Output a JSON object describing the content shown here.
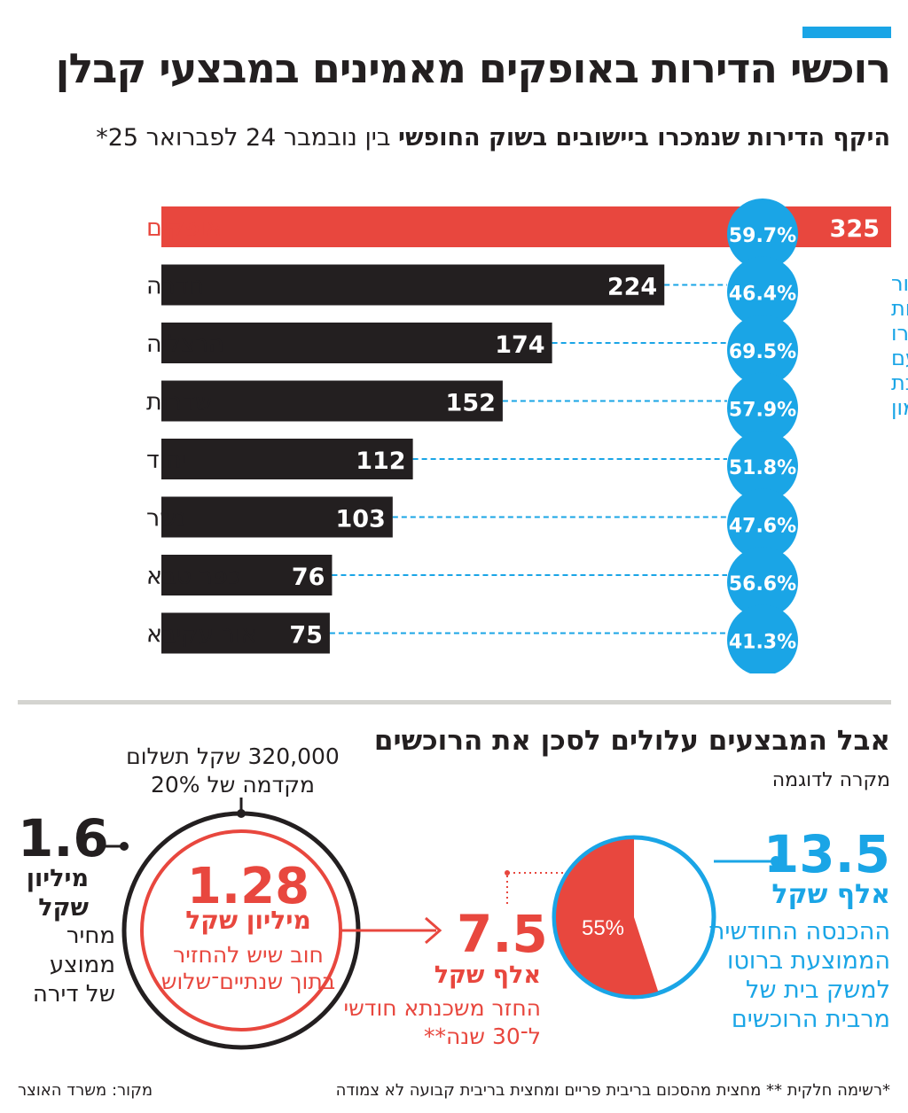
{
  "title": "רוכשי הדירות באופקים מאמינים במבצעי קבלן",
  "subtitle_bold": "היקף הדירות שנמכרו ביישובים בשוק החופשי",
  "subtitle_rest": " בין נובמבר 24 לפברואר 25*",
  "side_label": [
    "שיעור",
    "הדירות",
    "שנמכרו",
    "עם",
    "הטבת",
    "מימון"
  ],
  "chart_data": {
    "type": "bar",
    "orientation": "horizontal",
    "categories": [
      "אופקים",
      "חדרה",
      "הרצליה",
      "שדרות",
      "יהוד",
      "נשר",
      "כפר סבא",
      "אור עקיבא"
    ],
    "values": [
      325,
      224,
      174,
      152,
      112,
      103,
      76,
      75
    ],
    "financing_rate_labels": [
      "59.7%",
      "46.4%",
      "69.5%",
      "57.9%",
      "51.8%",
      "47.6%",
      "56.6%",
      "41.3%"
    ],
    "highlight_index": 0,
    "xlim": [
      0,
      325
    ]
  },
  "colors": {
    "blue": "#1aa5e6",
    "red": "#e8473e",
    "dark": "#231f20"
  },
  "section2": {
    "title": "אבל המבצעים עלולים לסכן את הרוכשים",
    "subtitle": "מקרה לדוגמה",
    "income_value": "13.5",
    "income_unit": "אלף שקל",
    "income_desc": "ההכנסה החודשית הממוצעת ברוטו למשק בית של מרבית הרוכשים",
    "pie_pct_label": "55%",
    "pie_fraction": 0.55,
    "mortgage_value": "7.5",
    "mortgage_unit": "אלף שקל",
    "mortgage_desc": "החזר משכנתא חודשי ל־30 שנה**",
    "debt_value": "1.28",
    "debt_unit": "מיליון שקל",
    "debt_desc": "חוב שיש להחזיר בתוך שנתיים־שלוש",
    "down_payment": "320,000 שקל תשלום מקדמה של 20%",
    "price_value": "1.6",
    "price_unit": "מיליון שקל",
    "price_desc": "מחיר ממוצע של דירה"
  },
  "footnote": "*רשימה חלקית ** מחצית מהסכום בריבית פריים ומחצית בריבית קבועה לא צמודה",
  "source": "מקור: משרד האוצר"
}
